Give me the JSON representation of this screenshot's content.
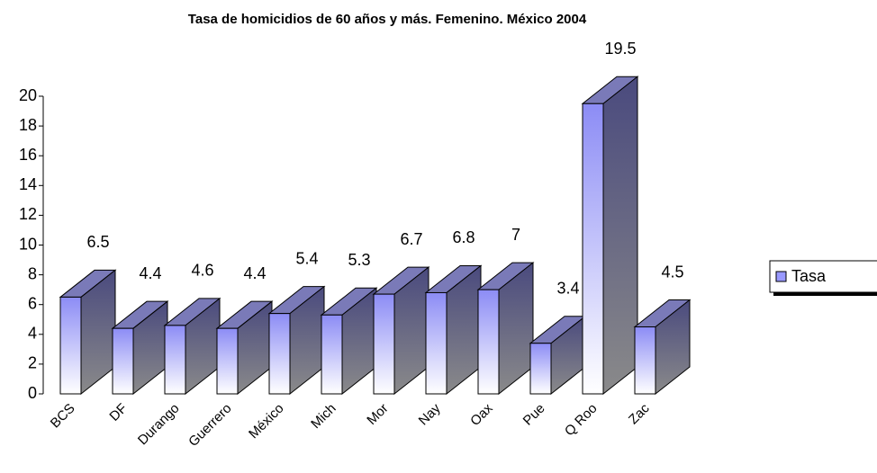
{
  "chart_data": {
    "type": "bar3d",
    "title": "Tasa de homicidios de 60 años y más. Femenino. México 2004",
    "categories": [
      "BCS",
      "DF",
      "Durango",
      "Guerrero",
      "México",
      "Mich",
      "Mor",
      "Nay",
      "Oax",
      "Pue",
      "Q Roo",
      "Zac"
    ],
    "series": [
      {
        "name": "Tasa",
        "color": "#9999ff",
        "values": [
          6.5,
          4.4,
          4.6,
          4.4,
          5.4,
          5.3,
          6.7,
          6.8,
          7,
          3.4,
          19.5,
          4.5
        ]
      }
    ],
    "ylim": [
      0,
      20
    ],
    "yticks": [
      0,
      2,
      4,
      6,
      8,
      10,
      12,
      14,
      16,
      18,
      20
    ],
    "legend": "right"
  }
}
